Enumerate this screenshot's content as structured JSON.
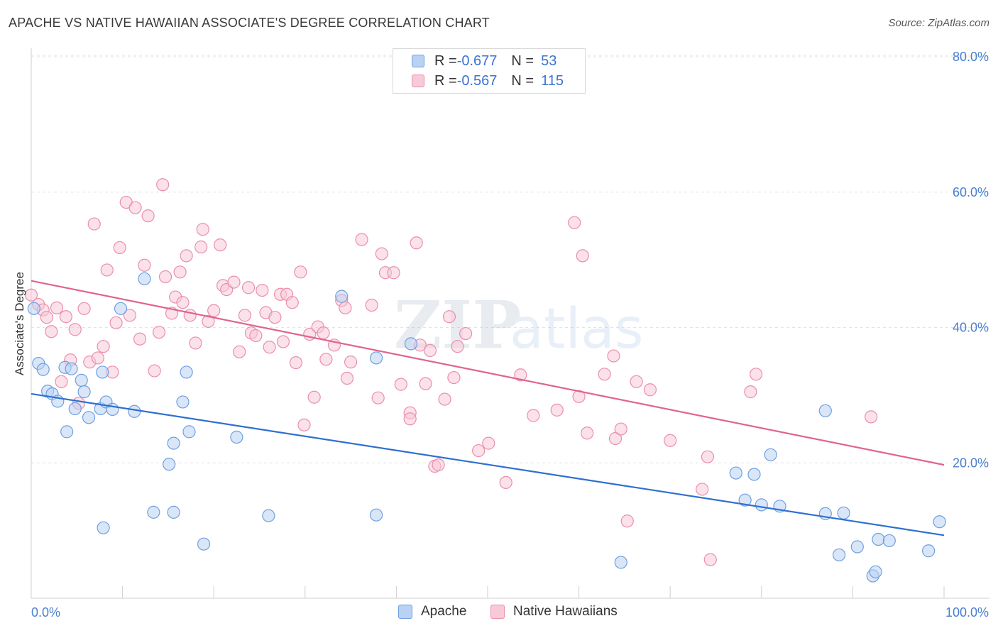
{
  "header": {
    "title": "APACHE VS NATIVE HAWAIIAN ASSOCIATE'S DEGREE CORRELATION CHART",
    "source": "Source: ZipAtlas.com"
  },
  "legend": {
    "rows": [
      {
        "r_label": "R = ",
        "r_value": "-0.677",
        "n_label": "N = ",
        "n_value": "53"
      },
      {
        "r_label": "R = ",
        "r_value": "-0.567",
        "n_label": "N = ",
        "n_value": "115"
      }
    ]
  },
  "bottom_legend": {
    "apache": "Apache",
    "hawaiian": "Native Hawaiians"
  },
  "colors": {
    "apache_fill": "#b9d1f3",
    "apache_stroke": "#6f9fe0",
    "apache_line": "#2f6fd1",
    "hawaiian_fill": "#f8c9d7",
    "hawaiian_stroke": "#ea8fab",
    "hawaiian_line": "#e0648e",
    "tick_text": "#4a7fd0",
    "grid": "#e3e3e3"
  },
  "chart_data": {
    "type": "scatter",
    "title": "APACHE VS NATIVE HAWAIIAN ASSOCIATE'S DEGREE CORRELATION CHART",
    "xlabel": "",
    "ylabel": "Associate's Degree",
    "xlim": [
      0,
      100
    ],
    "ylim": [
      0,
      80
    ],
    "x_tick_labels": [
      "0.0%",
      "100.0%"
    ],
    "y_ticks": [
      20,
      40,
      60,
      80
    ],
    "y_tick_labels": [
      "20.0%",
      "40.0%",
      "60.0%",
      "80.0%"
    ],
    "grid": true,
    "legend_position": "top-center",
    "series": [
      {
        "name": "Apache",
        "r": -0.677,
        "n": 53,
        "trend": [
          [
            0,
            30.2
          ],
          [
            100,
            9.3
          ]
        ],
        "points": [
          [
            0.3,
            42.8
          ],
          [
            0.8,
            34.7
          ],
          [
            1.3,
            33.8
          ],
          [
            1.8,
            30.6
          ],
          [
            2.3,
            30.2
          ],
          [
            2.9,
            29.1
          ],
          [
            3.7,
            34.1
          ],
          [
            3.9,
            24.6
          ],
          [
            4.4,
            33.9
          ],
          [
            4.8,
            28.0
          ],
          [
            5.5,
            32.2
          ],
          [
            5.8,
            30.5
          ],
          [
            6.3,
            26.7
          ],
          [
            7.6,
            28.0
          ],
          [
            7.8,
            33.4
          ],
          [
            7.9,
            10.4
          ],
          [
            8.2,
            29.0
          ],
          [
            8.9,
            27.9
          ],
          [
            9.8,
            42.8
          ],
          [
            11.3,
            27.6
          ],
          [
            12.4,
            47.2
          ],
          [
            13.4,
            12.7
          ],
          [
            15.1,
            19.8
          ],
          [
            15.6,
            22.9
          ],
          [
            15.6,
            12.7
          ],
          [
            16.6,
            29.0
          ],
          [
            17.0,
            33.4
          ],
          [
            17.3,
            24.6
          ],
          [
            18.9,
            8.0
          ],
          [
            22.5,
            23.8
          ],
          [
            26.0,
            12.2
          ],
          [
            34.0,
            44.6
          ],
          [
            37.8,
            35.5
          ],
          [
            37.8,
            12.3
          ],
          [
            41.6,
            37.6
          ],
          [
            64.6,
            5.3
          ],
          [
            77.2,
            18.5
          ],
          [
            78.2,
            14.5
          ],
          [
            79.2,
            18.3
          ],
          [
            80.0,
            13.8
          ],
          [
            81.0,
            21.2
          ],
          [
            82.0,
            13.6
          ],
          [
            87.0,
            12.5
          ],
          [
            87.0,
            27.7
          ],
          [
            88.5,
            6.4
          ],
          [
            89.0,
            12.6
          ],
          [
            90.5,
            7.6
          ],
          [
            92.2,
            3.3
          ],
          [
            92.5,
            3.9
          ],
          [
            92.8,
            8.7
          ],
          [
            94.0,
            8.5
          ],
          [
            98.3,
            7.0
          ],
          [
            99.5,
            11.3
          ]
        ]
      },
      {
        "name": "Native Hawaiians",
        "r": -0.567,
        "n": 115,
        "trend": [
          [
            0,
            46.9
          ],
          [
            100,
            19.7
          ]
        ],
        "points": [
          [
            0.0,
            44.8
          ],
          [
            0.8,
            43.4
          ],
          [
            1.3,
            42.6
          ],
          [
            1.7,
            41.5
          ],
          [
            2.2,
            39.4
          ],
          [
            2.8,
            42.9
          ],
          [
            3.3,
            32.0
          ],
          [
            3.8,
            41.6
          ],
          [
            4.3,
            35.2
          ],
          [
            4.8,
            39.7
          ],
          [
            5.2,
            28.8
          ],
          [
            5.8,
            42.8
          ],
          [
            6.4,
            34.9
          ],
          [
            6.9,
            55.3
          ],
          [
            7.3,
            35.5
          ],
          [
            7.9,
            37.2
          ],
          [
            8.3,
            48.5
          ],
          [
            8.9,
            33.4
          ],
          [
            9.3,
            40.7
          ],
          [
            9.7,
            51.8
          ],
          [
            10.4,
            58.5
          ],
          [
            10.8,
            41.8
          ],
          [
            11.4,
            57.7
          ],
          [
            11.9,
            38.3
          ],
          [
            12.4,
            49.2
          ],
          [
            12.8,
            56.5
          ],
          [
            13.5,
            33.6
          ],
          [
            14.0,
            39.3
          ],
          [
            14.4,
            61.1
          ],
          [
            14.7,
            47.5
          ],
          [
            15.4,
            42.1
          ],
          [
            15.8,
            44.5
          ],
          [
            16.3,
            48.2
          ],
          [
            16.6,
            43.7
          ],
          [
            17.0,
            50.6
          ],
          [
            17.4,
            41.8
          ],
          [
            18.0,
            37.7
          ],
          [
            18.6,
            51.9
          ],
          [
            18.8,
            54.5
          ],
          [
            19.4,
            40.9
          ],
          [
            20.0,
            42.5
          ],
          [
            20.7,
            52.2
          ],
          [
            21.0,
            46.2
          ],
          [
            21.4,
            45.6
          ],
          [
            22.2,
            46.7
          ],
          [
            22.8,
            36.4
          ],
          [
            23.4,
            41.8
          ],
          [
            23.8,
            45.9
          ],
          [
            24.1,
            39.2
          ],
          [
            24.6,
            38.8
          ],
          [
            25.3,
            45.5
          ],
          [
            25.7,
            42.2
          ],
          [
            26.1,
            37.1
          ],
          [
            26.7,
            41.5
          ],
          [
            27.3,
            44.9
          ],
          [
            27.6,
            37.9
          ],
          [
            28.0,
            44.9
          ],
          [
            28.6,
            43.7
          ],
          [
            29.0,
            34.8
          ],
          [
            29.5,
            48.2
          ],
          [
            29.9,
            25.6
          ],
          [
            30.5,
            39.0
          ],
          [
            31.0,
            29.7
          ],
          [
            31.4,
            40.1
          ],
          [
            32.0,
            39.2
          ],
          [
            32.3,
            35.3
          ],
          [
            33.2,
            37.4
          ],
          [
            34.0,
            44.0
          ],
          [
            34.4,
            42.9
          ],
          [
            34.6,
            32.5
          ],
          [
            35.0,
            34.9
          ],
          [
            36.2,
            53.0
          ],
          [
            37.3,
            43.3
          ],
          [
            38.0,
            29.6
          ],
          [
            38.4,
            50.9
          ],
          [
            38.8,
            48.1
          ],
          [
            39.7,
            48.1
          ],
          [
            40.5,
            31.6
          ],
          [
            41.5,
            27.4
          ],
          [
            41.5,
            26.5
          ],
          [
            42.2,
            52.5
          ],
          [
            42.6,
            37.4
          ],
          [
            43.2,
            31.7
          ],
          [
            43.7,
            36.6
          ],
          [
            44.2,
            19.5
          ],
          [
            44.6,
            19.7
          ],
          [
            45.3,
            29.4
          ],
          [
            45.8,
            41.6
          ],
          [
            46.3,
            32.6
          ],
          [
            46.7,
            37.2
          ],
          [
            47.6,
            39.1
          ],
          [
            49.0,
            21.8
          ],
          [
            50.1,
            22.9
          ],
          [
            52.0,
            17.1
          ],
          [
            53.6,
            33.0
          ],
          [
            55.0,
            27.0
          ],
          [
            57.6,
            27.8
          ],
          [
            59.5,
            55.5
          ],
          [
            60.0,
            29.8
          ],
          [
            60.4,
            50.6
          ],
          [
            60.9,
            24.4
          ],
          [
            62.8,
            33.1
          ],
          [
            63.8,
            35.8
          ],
          [
            64.0,
            23.6
          ],
          [
            64.6,
            25.0
          ],
          [
            65.3,
            11.4
          ],
          [
            66.3,
            32.0
          ],
          [
            67.8,
            30.8
          ],
          [
            70.0,
            23.3
          ],
          [
            73.5,
            16.1
          ],
          [
            74.1,
            20.9
          ],
          [
            74.4,
            5.7
          ],
          [
            78.8,
            30.5
          ],
          [
            79.4,
            33.1
          ],
          [
            92.0,
            26.8
          ]
        ]
      }
    ]
  }
}
